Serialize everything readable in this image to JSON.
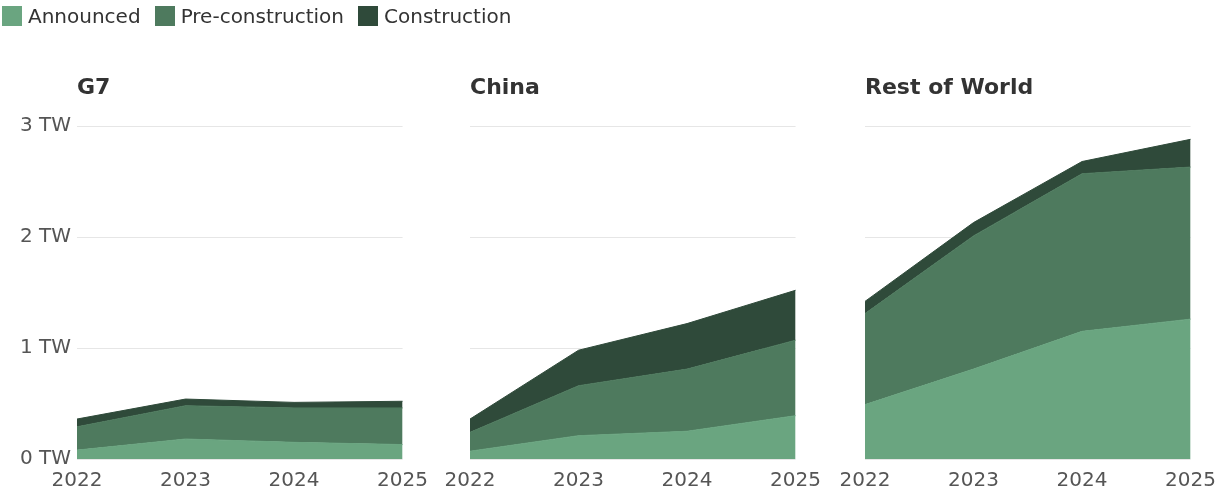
{
  "chart_data": [
    {
      "type": "area",
      "title": "G7",
      "categories": [
        "2022",
        "2023",
        "2024",
        "2025"
      ],
      "stacked": true,
      "legend": "top",
      "grid": "y",
      "ylim": [
        0,
        3
      ],
      "yticks": [
        {
          "value": 0,
          "label": "0 TW"
        },
        {
          "value": 1,
          "label": "1 TW"
        },
        {
          "value": 2,
          "label": "2 TW"
        },
        {
          "value": 3,
          "label": "3 TW"
        }
      ],
      "series": [
        {
          "name": "Announced",
          "color": "#6aa580",
          "values": [
            0.08,
            0.18,
            0.15,
            0.13
          ]
        },
        {
          "name": "Pre-construction",
          "color": "#4e7a5e",
          "values": [
            0.21,
            0.3,
            0.31,
            0.33
          ]
        },
        {
          "name": "Construction",
          "color": "#2f4a3a",
          "values": [
            0.07,
            0.06,
            0.05,
            0.06
          ]
        }
      ]
    },
    {
      "type": "area",
      "title": "China",
      "categories": [
        "2022",
        "2023",
        "2024",
        "2025"
      ],
      "stacked": true,
      "grid": "y",
      "tick_labels": "x",
      "ylim": [
        0,
        3
      ],
      "yticks": [
        {
          "value": 0,
          "label": null
        },
        {
          "value": 1,
          "label": null
        },
        {
          "value": 2,
          "label": null
        },
        {
          "value": 3,
          "label": null
        }
      ],
      "series": [
        {
          "color": "#6aa580",
          "values": [
            0.07,
            0.21,
            0.25,
            0.39
          ]
        },
        {
          "color": "#4e7a5e",
          "values": [
            0.17,
            0.45,
            0.56,
            0.68
          ]
        },
        {
          "color": "#2f4a3a",
          "values": [
            0.12,
            0.32,
            0.41,
            0.45
          ]
        }
      ]
    },
    {
      "type": "area",
      "title": "Rest of World",
      "categories": [
        "2022",
        "2023",
        "2024",
        "2025"
      ],
      "stacked": true,
      "grid": "y",
      "tick_labels": "x",
      "ylim": [
        0,
        3
      ],
      "yticks": [
        {
          "value": 0,
          "label": null
        },
        {
          "value": 1,
          "label": null
        },
        {
          "value": 2,
          "label": null
        },
        {
          "value": 3,
          "label": null
        }
      ],
      "series": [
        {
          "color": "#6aa580",
          "values": [
            0.49,
            0.81,
            1.15,
            1.26
          ]
        },
        {
          "color": "#4e7a5e",
          "values": [
            0.82,
            1.2,
            1.42,
            1.37
          ]
        },
        {
          "color": "#2f4a3a",
          "values": [
            0.11,
            0.12,
            0.11,
            0.25
          ]
        }
      ]
    }
  ]
}
